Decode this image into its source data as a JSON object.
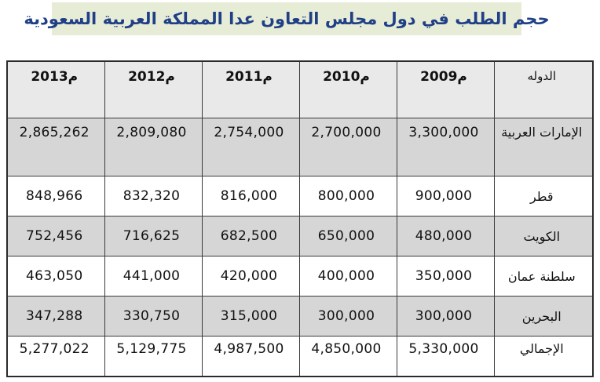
{
  "title": "حجم الطلب في دول مجلس التعاون عدا المملكة العربية السعودية",
  "table": {
    "header": {
      "country": "الدوله",
      "years": [
        "2013م",
        "2012م",
        "2011م",
        "2010م",
        "2009م"
      ]
    },
    "rows": [
      {
        "country": "الإمارات العربية",
        "values": [
          "2,865,262",
          "2,809,080",
          "2,754,000",
          "2,700,000",
          "3,300,000"
        ]
      },
      {
        "country": "قطر",
        "values": [
          "848,966",
          "832,320",
          "816,000",
          "800,000",
          "900,000"
        ]
      },
      {
        "country": "الكويت",
        "values": [
          "752,456",
          "716,625",
          "682,500",
          "650,000",
          "480,000"
        ]
      },
      {
        "country": "سلطنة عمان",
        "values": [
          "463,050",
          "441,000",
          "420,000",
          "400,000",
          "350,000"
        ]
      },
      {
        "country": "البحرين",
        "values": [
          "347,288",
          "330,750",
          "315,000",
          "300,000",
          "300,000"
        ]
      },
      {
        "country": "الإجمالي",
        "values": [
          "5,277,022",
          "5,129,775",
          "4,987,500",
          "4,850,000",
          "5,330,000"
        ]
      }
    ]
  }
}
